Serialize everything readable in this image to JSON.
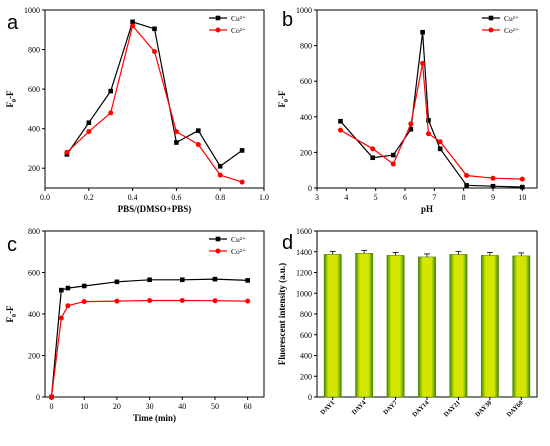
{
  "panels": [
    "a",
    "b",
    "c",
    "d"
  ],
  "chart_data": [
    {
      "panel": "a",
      "type": "line",
      "xlabel": "PBS/(DMSO+PBS)",
      "ylabel": "F₀-F",
      "xlim": [
        0.0,
        1.0
      ],
      "ylim": [
        100,
        1000
      ],
      "xticks": [
        0.0,
        0.2,
        0.4,
        0.6,
        0.8,
        1.0
      ],
      "xtick_labels": [
        "0.0",
        "0.2",
        "0.4",
        "0.6",
        "0.8",
        "1.0"
      ],
      "yticks": [
        200,
        400,
        600,
        800,
        1000
      ],
      "ytick_labels": [
        "200",
        "400",
        "600",
        "800",
        "1000"
      ],
      "legend_position": "top-right",
      "series": [
        {
          "name": "Cu²⁺",
          "color": "#000000",
          "marker": "square",
          "x": [
            0.1,
            0.2,
            0.3,
            0.4,
            0.5,
            0.6,
            0.7,
            0.8,
            0.9
          ],
          "y": [
            270,
            430,
            590,
            940,
            905,
            330,
            390,
            210,
            290
          ]
        },
        {
          "name": "Co²⁺",
          "color": "#ff0000",
          "marker": "circle",
          "x": [
            0.1,
            0.2,
            0.3,
            0.4,
            0.5,
            0.6,
            0.7,
            0.8,
            0.9
          ],
          "y": [
            280,
            385,
            480,
            920,
            790,
            385,
            320,
            165,
            130
          ]
        }
      ]
    },
    {
      "panel": "b",
      "type": "line",
      "xlabel": "pH",
      "ylabel": "F₀-F",
      "xlim": [
        3,
        10.5
      ],
      "ylim": [
        0,
        1000
      ],
      "xticks": [
        3,
        4,
        5,
        6,
        7,
        8,
        9,
        10
      ],
      "xtick_labels": [
        "3",
        "4",
        "5",
        "6",
        "7",
        "8",
        "9",
        "10"
      ],
      "yticks": [
        0,
        200,
        400,
        600,
        800,
        1000
      ],
      "ytick_labels": [
        "0",
        "200",
        "400",
        "600",
        "800",
        "1000"
      ],
      "legend_position": "top-right",
      "series": [
        {
          "name": "Cu²⁺",
          "color": "#000000",
          "marker": "square",
          "x": [
            3.8,
            4.9,
            5.6,
            6.2,
            6.6,
            6.8,
            7.2,
            8.1,
            9.0,
            10.0
          ],
          "y": [
            375,
            170,
            185,
            330,
            875,
            380,
            220,
            15,
            10,
            5
          ]
        },
        {
          "name": "Co²⁺",
          "color": "#ff0000",
          "marker": "circle",
          "x": [
            3.8,
            4.9,
            5.6,
            6.2,
            6.6,
            6.8,
            7.2,
            8.1,
            9.0,
            10.0
          ],
          "y": [
            325,
            220,
            135,
            360,
            700,
            305,
            260,
            70,
            55,
            50
          ]
        }
      ]
    },
    {
      "panel": "c",
      "type": "line",
      "xlabel": "Time (min)",
      "ylabel": "F₀-F",
      "xlim": [
        -2,
        65
      ],
      "ylim": [
        0,
        800
      ],
      "xticks": [
        0,
        10,
        20,
        30,
        40,
        50,
        60
      ],
      "xtick_labels": [
        "0",
        "10",
        "20",
        "30",
        "40",
        "50",
        "60"
      ],
      "yticks": [
        0,
        200,
        400,
        600,
        800
      ],
      "ytick_labels": [
        "0",
        "200",
        "400",
        "600",
        "800"
      ],
      "legend_position": "top-right",
      "series": [
        {
          "name": "Cu²⁺",
          "color": "#000000",
          "marker": "square",
          "x": [
            0,
            3,
            5,
            10,
            20,
            30,
            40,
            50,
            60
          ],
          "y": [
            0,
            515,
            525,
            535,
            555,
            565,
            565,
            568,
            562
          ]
        },
        {
          "name": "Co²⁺",
          "color": "#ff0000",
          "marker": "circle",
          "x": [
            0,
            3,
            5,
            10,
            20,
            30,
            40,
            50,
            60
          ],
          "y": [
            0,
            380,
            440,
            460,
            462,
            465,
            465,
            464,
            462
          ]
        }
      ]
    },
    {
      "panel": "d",
      "type": "bar",
      "xlabel": "",
      "ylabel": "Fluorescent intensity (a.u.)",
      "ylim": [
        0,
        1600
      ],
      "yticks": [
        0,
        200,
        400,
        600,
        800,
        1000,
        1200,
        1400,
        1600
      ],
      "ytick_labels": [
        "0",
        "200",
        "400",
        "600",
        "800",
        "1000",
        "1200",
        "1400",
        "1600"
      ],
      "categories": [
        "DAY1",
        "DAY4",
        "DAY7",
        "DAY14",
        "DAY21",
        "DAY30",
        "DAY60"
      ],
      "values": [
        1375,
        1385,
        1365,
        1350,
        1375,
        1365,
        1360
      ],
      "bar_colors": [
        "#d4e600",
        "#3c8a00"
      ]
    }
  ]
}
